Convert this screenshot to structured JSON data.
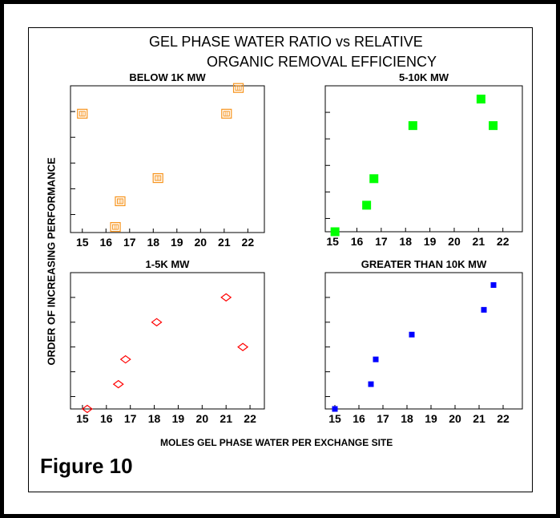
{
  "figure": {
    "title_line1": "GEL PHASE WATER RATIO vs RELATIVE",
    "title_line2": "ORGANIC REMOVAL EFFICIENCY",
    "ylabel": "ORDER OF INCREASING PERFORMANCE",
    "xlabel": "MOLES GEL PHASE WATER PER EXCHANGE SITE",
    "caption": "Figure 10"
  },
  "chart_data": [
    {
      "type": "scatter",
      "title": "BELOW 1K MW",
      "marker": "square-hatched",
      "color": "#f7941d",
      "xlim": [
        14.5,
        22.7
      ],
      "ylim": [
        0.3,
        6.0
      ],
      "xticks": [
        15,
        16,
        17,
        18,
        19,
        20,
        21,
        22
      ],
      "yticks": [
        1,
        2,
        3,
        4,
        5
      ],
      "points": [
        [
          15.0,
          4.9
        ],
        [
          16.4,
          0.5
        ],
        [
          16.6,
          1.5
        ],
        [
          18.2,
          2.4
        ],
        [
          21.1,
          4.9
        ],
        [
          21.6,
          5.9
        ]
      ]
    },
    {
      "type": "scatter",
      "title": "5-10K MW",
      "marker": "square-filled",
      "color": "#00ff00",
      "xlim": [
        14.7,
        22.8
      ],
      "ylim": [
        0.5,
        6.0
      ],
      "xticks": [
        15,
        16,
        17,
        18,
        19,
        20,
        21,
        22
      ],
      "yticks": [
        1,
        2,
        3,
        4,
        5
      ],
      "points": [
        [
          15.1,
          0.5
        ],
        [
          16.4,
          1.5
        ],
        [
          16.7,
          2.5
        ],
        [
          18.3,
          4.5
        ],
        [
          21.1,
          5.5
        ],
        [
          21.6,
          4.5
        ]
      ]
    },
    {
      "type": "scatter",
      "title": "1-5K MW",
      "marker": "diamond-open",
      "color": "#ff0000",
      "xlim": [
        14.5,
        22.6
      ],
      "ylim": [
        0.5,
        6.0
      ],
      "xticks": [
        15,
        16,
        17,
        18,
        19,
        20,
        21,
        22
      ],
      "yticks": [
        1,
        2,
        3,
        4,
        5
      ],
      "points": [
        [
          15.2,
          0.5
        ],
        [
          16.5,
          1.5
        ],
        [
          16.8,
          2.5
        ],
        [
          18.1,
          4.0
        ],
        [
          21.0,
          5.0
        ],
        [
          21.7,
          3.0
        ]
      ]
    },
    {
      "type": "scatter",
      "title": "GREATER THAN 10K MW",
      "marker": "square-filled",
      "color": "#0000ff",
      "xlim": [
        14.6,
        22.8
      ],
      "ylim": [
        0.5,
        6.0
      ],
      "xticks": [
        15,
        16,
        17,
        18,
        19,
        20,
        21,
        22
      ],
      "yticks": [
        1,
        2,
        3,
        4,
        5
      ],
      "points": [
        [
          15.0,
          0.5
        ],
        [
          16.5,
          1.5
        ],
        [
          16.7,
          2.5
        ],
        [
          18.2,
          3.5
        ],
        [
          21.2,
          4.5
        ],
        [
          21.6,
          5.5
        ]
      ]
    }
  ]
}
